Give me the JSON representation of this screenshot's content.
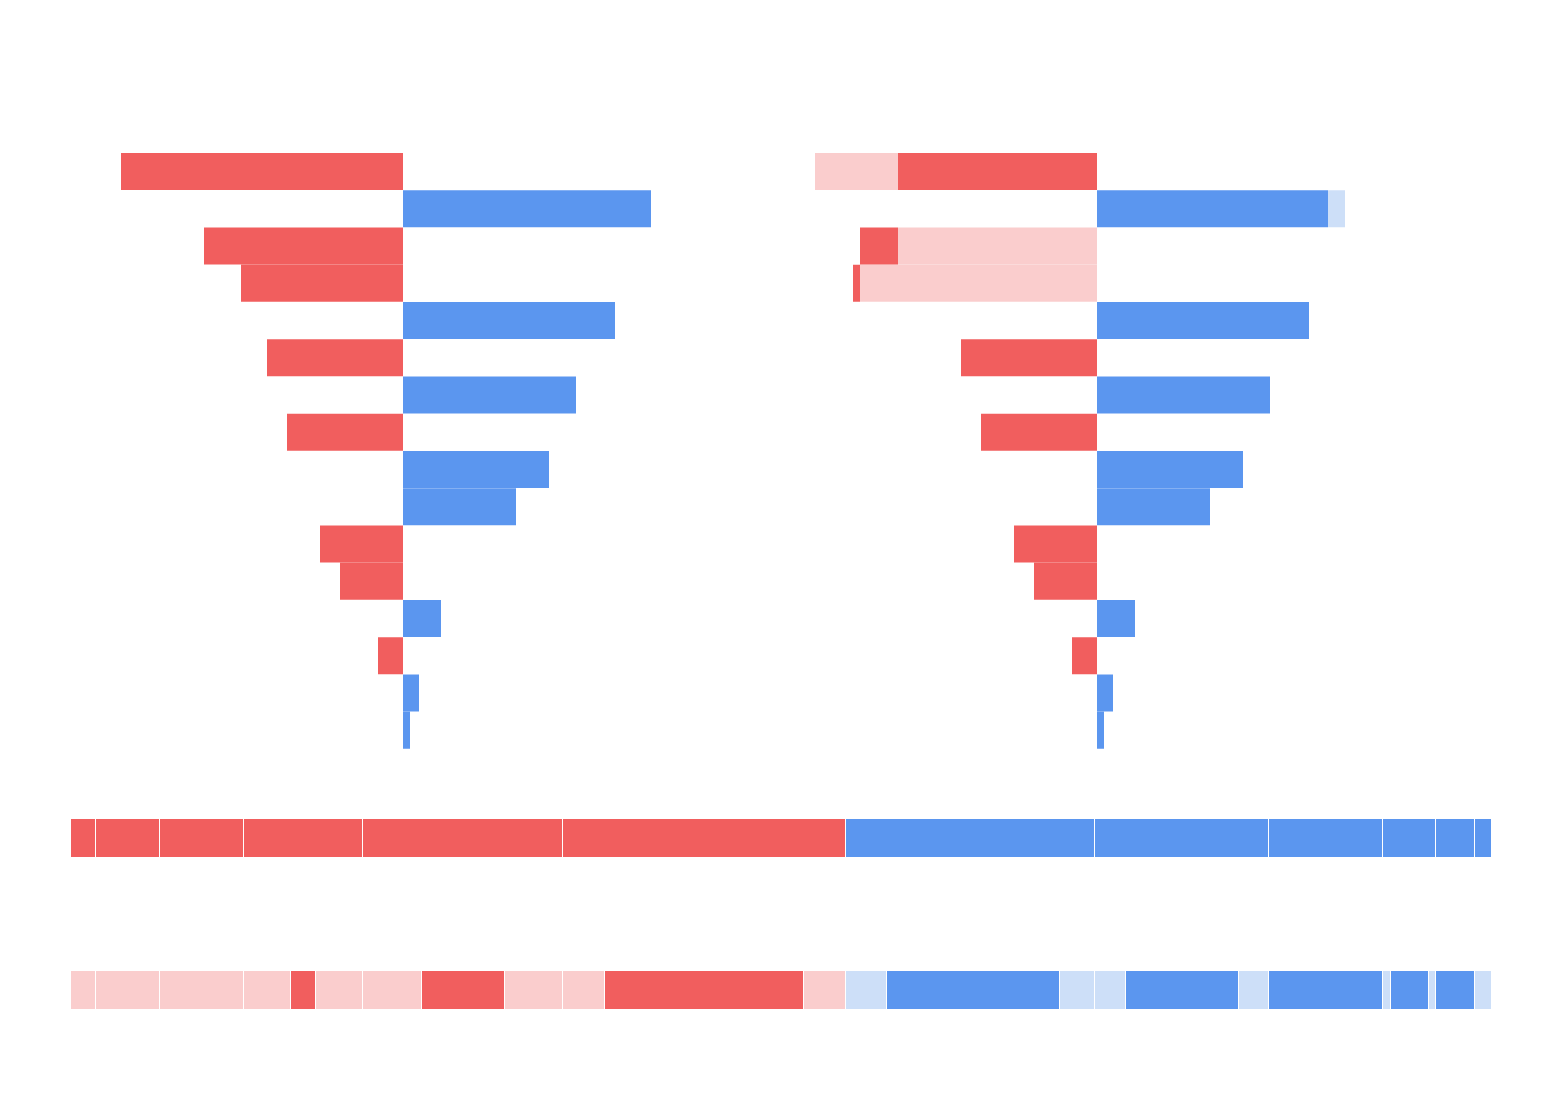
{
  "chart_data": [
    {
      "type": "diverging-bar",
      "positive_color": "#5b96ef",
      "negative_color": "#f15e5e",
      "values": [
        -282,
        248,
        -199,
        -162,
        212,
        -136,
        173,
        -116,
        146,
        113,
        -83,
        -63,
        38,
        -25,
        16,
        7
      ]
    },
    {
      "type": "stacked-diverging-bar",
      "rows": [
        [
          {
            "value": -199,
            "color": "#f15e5e"
          },
          {
            "value": -83,
            "color": "#facdcd"
          }
        ],
        [
          {
            "value": 231,
            "color": "#5b96ef"
          },
          {
            "value": 17,
            "color": "#cddff8"
          }
        ],
        [
          {
            "value": -199,
            "color": "#facdcd"
          },
          {
            "value": -38,
            "color": "#f15e5e"
          }
        ],
        [
          {
            "value": -237,
            "color": "#facdcd"
          },
          {
            "value": -7,
            "color": "#f15e5e"
          }
        ],
        [
          {
            "value": 212,
            "color": "#5b96ef"
          }
        ],
        [
          {
            "value": -136,
            "color": "#f15e5e"
          }
        ],
        [
          {
            "value": 173,
            "color": "#5b96ef"
          }
        ],
        [
          {
            "value": -116,
            "color": "#f15e5e"
          }
        ],
        [
          {
            "value": 146,
            "color": "#5b96ef"
          }
        ],
        [
          {
            "value": 113,
            "color": "#5b96ef"
          }
        ],
        [
          {
            "value": -83,
            "color": "#f15e5e"
          }
        ],
        [
          {
            "value": -63,
            "color": "#f15e5e"
          }
        ],
        [
          {
            "value": 38,
            "color": "#5b96ef"
          }
        ],
        [
          {
            "value": -25,
            "color": "#f15e5e"
          }
        ],
        [
          {
            "value": 16,
            "color": "#5b96ef"
          }
        ],
        [
          {
            "value": 7,
            "color": "#5b96ef"
          }
        ]
      ]
    },
    {
      "type": "strip",
      "segments": [
        {
          "value": 25,
          "color": "#f15e5e"
        },
        {
          "value": 64,
          "color": "#f15e5e"
        },
        {
          "value": 84,
          "color": "#f15e5e"
        },
        {
          "value": 119,
          "color": "#f15e5e"
        },
        {
          "value": 200,
          "color": "#f15e5e"
        },
        {
          "value": 283,
          "color": "#f15e5e"
        },
        {
          "value": 249,
          "color": "#5b96ef"
        },
        {
          "value": 174,
          "color": "#5b96ef"
        },
        {
          "value": 114,
          "color": "#5b96ef"
        },
        {
          "value": 53,
          "color": "#5b96ef"
        },
        {
          "value": 39,
          "color": "#5b96ef"
        },
        {
          "value": 17,
          "color": "#5b96ef"
        }
      ]
    },
    {
      "type": "strip",
      "segments": [
        {
          "value": 25,
          "color": "#facdcd"
        },
        {
          "value": 64,
          "color": "#facdcd"
        },
        {
          "value": 84,
          "color": "#facdcd"
        },
        {
          "value": 47,
          "color": "#facdcd"
        },
        {
          "value": 25,
          "color": "#f15e5e"
        },
        {
          "value": 47,
          "color": "#facdcd"
        },
        {
          "value": 59,
          "color": "#facdcd"
        },
        {
          "value": 83,
          "color": "#f15e5e"
        },
        {
          "value": 58,
          "color": "#facdcd"
        },
        {
          "value": 42,
          "color": "#facdcd"
        },
        {
          "value": 199,
          "color": "#f15e5e"
        },
        {
          "value": 42,
          "color": "#facdcd"
        },
        {
          "value": 41,
          "color": "#cddff8"
        },
        {
          "value": 173,
          "color": "#5b96ef"
        },
        {
          "value": 35,
          "color": "#cddff8"
        },
        {
          "value": 31,
          "color": "#cddff8"
        },
        {
          "value": 113,
          "color": "#5b96ef"
        },
        {
          "value": 30,
          "color": "#cddff8"
        },
        {
          "value": 114,
          "color": "#5b96ef"
        },
        {
          "value": 8,
          "color": "#cddff8"
        },
        {
          "value": 38,
          "color": "#5b96ef"
        },
        {
          "value": 7,
          "color": "#cddff8"
        },
        {
          "value": 39,
          "color": "#5b96ef"
        },
        {
          "value": 17,
          "color": "#cddff8"
        }
      ]
    }
  ]
}
